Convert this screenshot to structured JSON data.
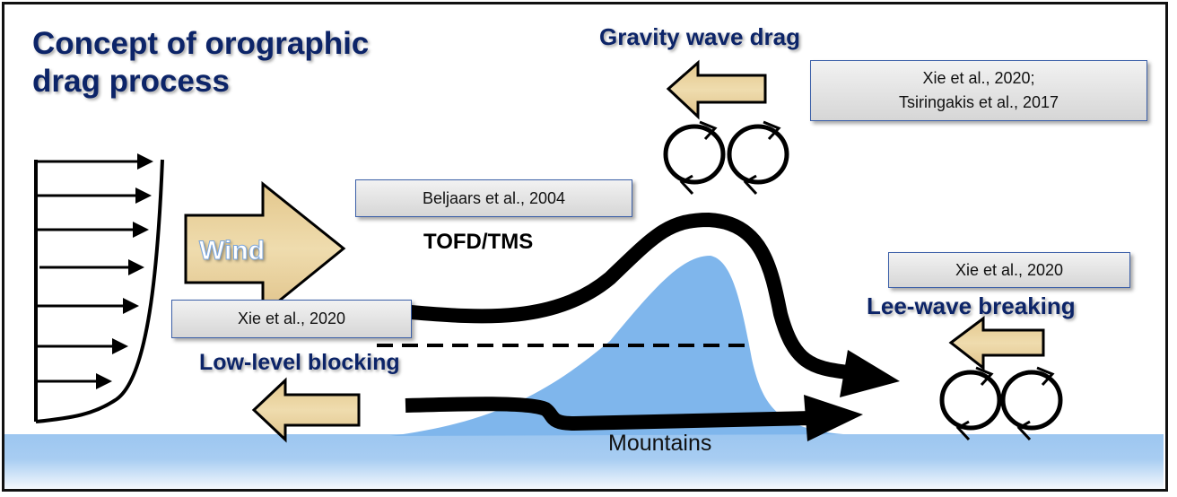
{
  "title": {
    "line1": "Concept of orographic",
    "line2": "drag process"
  },
  "labels": {
    "gravity_wave_drag": "Gravity wave drag",
    "wind": "Wind",
    "tofd_tms": "TOFD/TMS",
    "low_level_blocking": "Low-level blocking",
    "lee_wave_breaking": "Lee-wave breaking",
    "mountains": "Mountains"
  },
  "references": {
    "gravity_wave": {
      "line1": "Xie et al., 2020;",
      "line2": "Tsiringakis et al., 2017"
    },
    "tofd": "Beljaars et al., 2004",
    "blocking": "Xie et al., 2020",
    "lee_wave": "Xie et al., 2020"
  },
  "colors": {
    "title": "#0c2468",
    "mountain": "#7fb6ec",
    "ground": "#9cc6f0",
    "drag_arrow": "#e8cf98",
    "flow": "#000000"
  }
}
